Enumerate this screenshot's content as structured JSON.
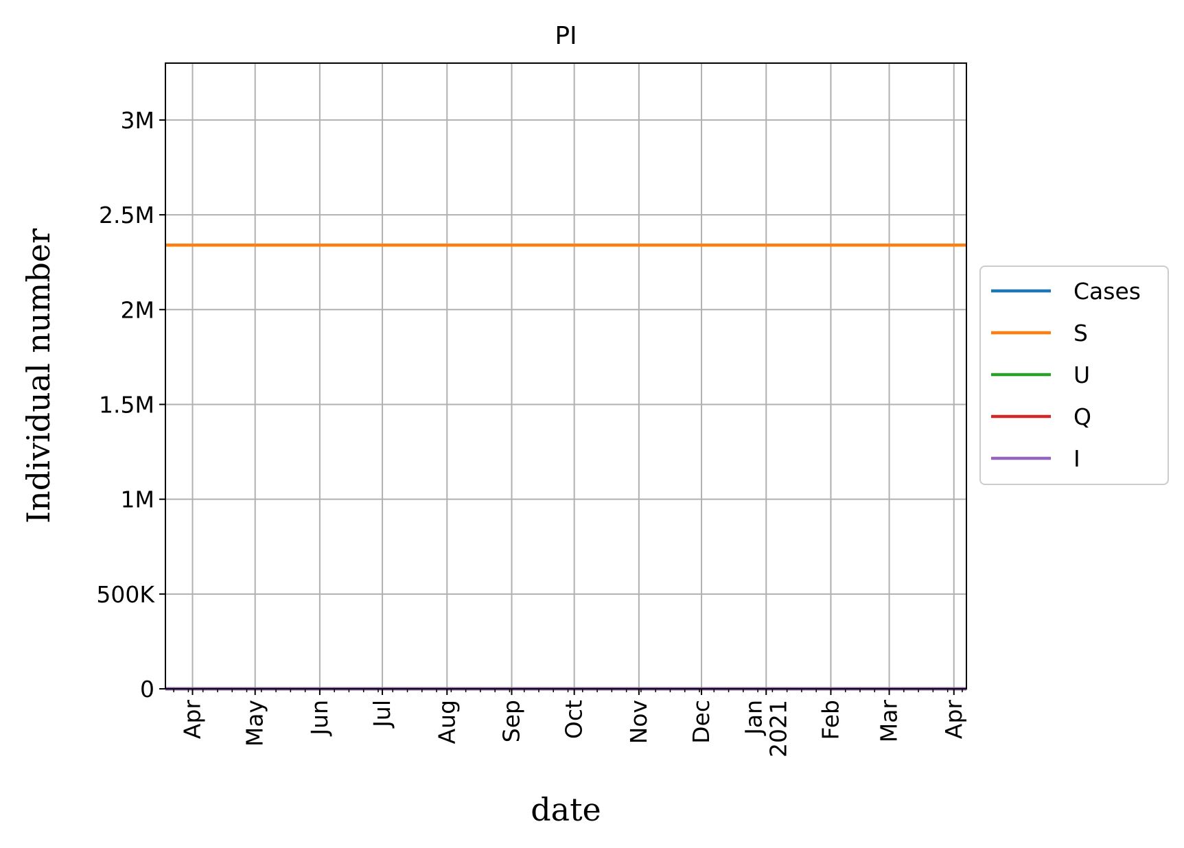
{
  "chart_data": {
    "type": "line",
    "title": "PI",
    "xlabel": "date",
    "ylabel": "Individual number",
    "x_ticks": [
      {
        "date": "2020-04-01",
        "label": "Apr",
        "sublabel": ""
      },
      {
        "date": "2020-05-01",
        "label": "May",
        "sublabel": ""
      },
      {
        "date": "2020-06-01",
        "label": "Jun",
        "sublabel": ""
      },
      {
        "date": "2020-07-01",
        "label": "Jul",
        "sublabel": ""
      },
      {
        "date": "2020-08-01",
        "label": "Aug",
        "sublabel": ""
      },
      {
        "date": "2020-09-01",
        "label": "Sep",
        "sublabel": ""
      },
      {
        "date": "2020-10-01",
        "label": "Oct",
        "sublabel": ""
      },
      {
        "date": "2020-11-01",
        "label": "Nov",
        "sublabel": ""
      },
      {
        "date": "2020-12-01",
        "label": "Dec",
        "sublabel": ""
      },
      {
        "date": "2021-01-01",
        "label": "Jan",
        "sublabel": "2021"
      },
      {
        "date": "2021-02-01",
        "label": "Feb",
        "sublabel": ""
      },
      {
        "date": "2021-03-01",
        "label": "Mar",
        "sublabel": ""
      },
      {
        "date": "2021-04-01",
        "label": "Apr",
        "sublabel": ""
      }
    ],
    "y_ticks": [
      {
        "value": 0,
        "label": "0"
      },
      {
        "value": 500000,
        "label": "500K"
      },
      {
        "value": 1000000,
        "label": "1M"
      },
      {
        "value": 1500000,
        "label": "1.5M"
      },
      {
        "value": 2000000,
        "label": "2M"
      },
      {
        "value": 2500000,
        "label": "2.5M"
      },
      {
        "value": 3000000,
        "label": "3M"
      }
    ],
    "xlim": [
      "2020-03-19",
      "2021-04-07"
    ],
    "ylim": [
      0,
      3300000
    ],
    "grid": true,
    "legend_position": "center-right, outside plot",
    "series": [
      {
        "name": "Cases",
        "color": "#1f77b4",
        "x": [
          "2020-03-19",
          "2021-04-07"
        ],
        "y": [
          0,
          0
        ]
      },
      {
        "name": "S",
        "color": "#ff7f0e",
        "x": [
          "2020-03-19",
          "2021-04-07"
        ],
        "y": [
          2340000,
          2340000
        ]
      },
      {
        "name": "U",
        "color": "#2ca02c",
        "x": [
          "2020-03-19",
          "2021-04-07"
        ],
        "y": [
          0,
          0
        ]
      },
      {
        "name": "Q",
        "color": "#d62728",
        "x": [
          "2020-03-19",
          "2021-04-07"
        ],
        "y": [
          0,
          0
        ]
      },
      {
        "name": "I",
        "color": "#9467bd",
        "x": [
          "2020-03-19",
          "2021-04-07"
        ],
        "y": [
          0,
          0
        ]
      }
    ]
  }
}
